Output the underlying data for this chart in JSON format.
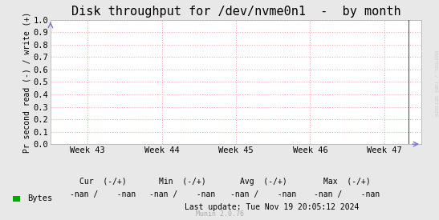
{
  "title": "Disk throughput for /dev/nvme0n1  -  by month",
  "ylabel": "Pr second read (-) / write (+)",
  "background_color": "#e8e8e8",
  "plot_background_color": "#ffffff",
  "grid_color": "#ffaaaa",
  "ylim": [
    0.0,
    1.0
  ],
  "yticks": [
    0.0,
    0.1,
    0.2,
    0.3,
    0.4,
    0.5,
    0.6,
    0.7,
    0.8,
    0.9,
    1.0
  ],
  "xtick_labels": [
    "Week 43",
    "Week 44",
    "Week 45",
    "Week 46",
    "Week 47"
  ],
  "xtick_positions": [
    0.5,
    1.5,
    2.5,
    3.5,
    4.5
  ],
  "xlim": [
    0,
    5
  ],
  "vline_x": 4.83,
  "vline_color": "#555555",
  "arrow_color": "#7777cc",
  "legend_label": "Bytes",
  "legend_color": "#00aa00",
  "cur_label": "Cur  (-/+)",
  "min_label": "Min  (-/+)",
  "avg_label": "Avg  (-/+)",
  "max_label": "Max  (-/+)",
  "cur_val": "-nan /    -nan",
  "min_val": "-nan /    -nan",
  "avg_val": "-nan /    -nan",
  "max_val": "-nan /    -nan",
  "last_update": "Last update: Tue Nov 19 20:05:12 2024",
  "munin_version": "Munin 2.0.76",
  "side_label": "RRDTOOL / TOBI OETIKER",
  "title_fontsize": 11,
  "tick_fontsize": 7.5,
  "ylabel_fontsize": 7,
  "legend_fontsize": 7.5,
  "stats_fontsize": 7,
  "side_fontsize": 4.5
}
